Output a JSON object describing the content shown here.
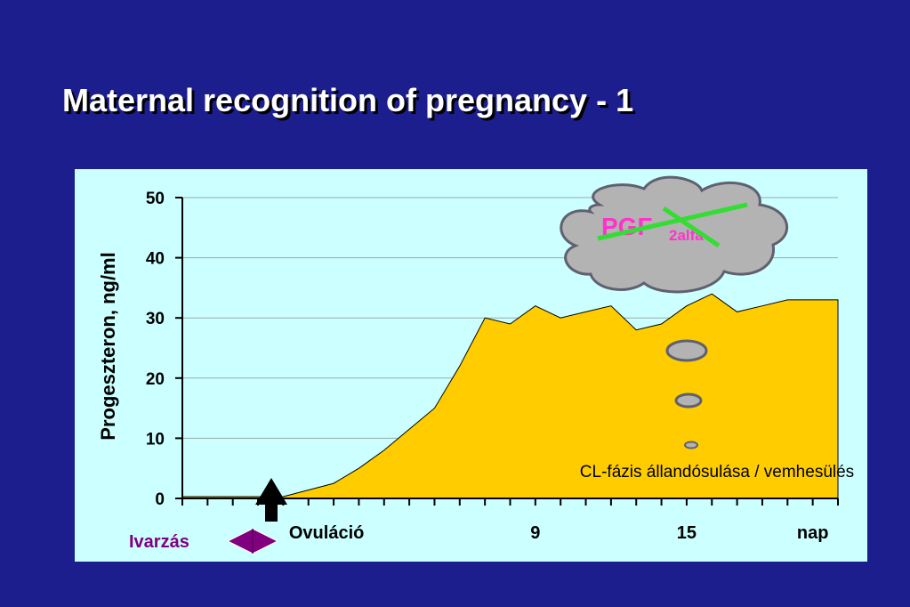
{
  "slide": {
    "title": "Maternal recognition of pregnancy - 1",
    "background": "#1b1e8c",
    "panel_color": "#ccffff"
  },
  "chart_data": {
    "type": "area",
    "ylabel": "Progeszteron, ng/ml",
    "ylim": [
      0,
      50
    ],
    "yticks": [
      0,
      10,
      20,
      30,
      40,
      50
    ],
    "xlim": [
      0,
      26
    ],
    "x_category_labels": [
      {
        "x": 4.3,
        "label": "Ovuláció"
      },
      {
        "x": 14,
        "label": "9"
      },
      {
        "x": 20,
        "label": "15"
      },
      {
        "x": 25,
        "label": "nap"
      }
    ],
    "grid": true,
    "area_color": "#ffcc00",
    "series": [
      {
        "x": [
          0,
          4,
          6,
          7,
          8,
          9,
          10,
          11,
          12,
          13,
          14,
          15,
          16,
          17,
          18,
          19,
          20,
          21,
          22,
          23,
          24,
          25,
          26
        ],
        "values": [
          0.3,
          0.3,
          2.5,
          5,
          8,
          11.5,
          15,
          22,
          30,
          29,
          32,
          30,
          31,
          32,
          28,
          29,
          32,
          34,
          31,
          32,
          33,
          33,
          33
        ]
      }
    ],
    "annotations": {
      "phase_text": "CL-fázis állandósulása / vemhesülés",
      "cycle_label": "Ivarzás",
      "cloud_text": "PGF",
      "cloud_subscript": "2alfa"
    },
    "colors": {
      "cycle_marker": "#800080",
      "cross": "#33dd33",
      "cloud": "#b3b3b3",
      "cloud_text": "#ff33cc"
    }
  }
}
